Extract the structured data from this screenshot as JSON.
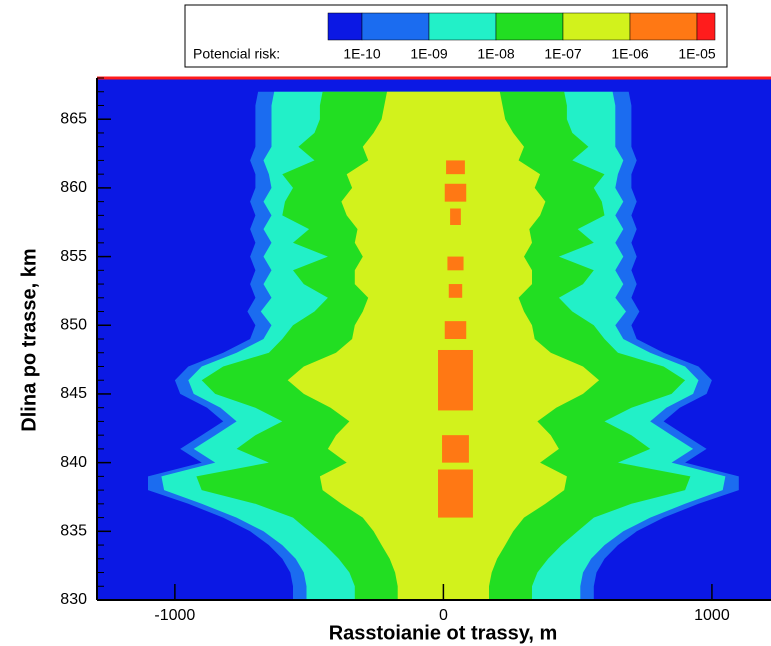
{
  "chart_data": {
    "type": "contour",
    "legend_title": "Potencial risk:",
    "levels": [
      {
        "value": 1e-10,
        "label": "1E-10"
      },
      {
        "value": 1e-09,
        "label": "1E-09"
      },
      {
        "value": 1e-08,
        "label": "1E-08"
      },
      {
        "value": 1e-07,
        "label": "1E-07"
      },
      {
        "value": 1e-06,
        "label": "1E-06"
      },
      {
        "value": 1e-05,
        "label": "1E-05"
      }
    ],
    "level_colors": [
      "#0b18e4",
      "#1b6cf0",
      "#22f0c8",
      "#22de22",
      "#d2f21c",
      "#ff7814",
      "#ff1c1c"
    ],
    "xlabel": "Rasstoianie ot trassy, m",
    "ylabel": "Dlina po trasse, km",
    "xlim": [
      -1290,
      1220
    ],
    "ylim": [
      830,
      868
    ],
    "xticks": [
      -1000,
      0,
      1000
    ],
    "yticks": [
      830,
      835,
      840,
      845,
      850,
      855,
      860,
      865
    ],
    "yminor_step": 1,
    "y": [
      830,
      831,
      832,
      833,
      834,
      835,
      836,
      837,
      838,
      839,
      840,
      841,
      842,
      843,
      844,
      845,
      846,
      847,
      848,
      849,
      850,
      851,
      852,
      853,
      854,
      855,
      856,
      857,
      858,
      859,
      860,
      861,
      862,
      863,
      864,
      865,
      866,
      867
    ],
    "bands": [
      {
        "half_width": [
          560,
          560,
          570,
          600,
          650,
          720,
          820,
          950,
          1100,
          1100,
          900,
          980,
          900,
          820,
          880,
          980,
          1000,
          950,
          820,
          720,
          700,
          730,
          700,
          720,
          700,
          720,
          700,
          720,
          700,
          720,
          700,
          700,
          720,
          700,
          700,
          700,
          700,
          690
        ]
      },
      {
        "half_width": [
          510,
          510,
          520,
          550,
          600,
          670,
          770,
          900,
          1040,
          1050,
          850,
          930,
          850,
          770,
          830,
          930,
          950,
          900,
          770,
          670,
          640,
          680,
          640,
          670,
          640,
          670,
          640,
          670,
          640,
          670,
          640,
          650,
          670,
          640,
          640,
          640,
          640,
          630
        ]
      },
      {
        "half_width": [
          330,
          330,
          350,
          390,
          440,
          500,
          560,
          700,
          900,
          920,
          650,
          770,
          700,
          600,
          700,
          850,
          900,
          820,
          650,
          600,
          560,
          480,
          430,
          520,
          560,
          430,
          560,
          500,
          600,
          590,
          560,
          600,
          480,
          540,
          480,
          460,
          460,
          450
        ]
      },
      {
        "half_width": [
          170,
          170,
          180,
          200,
          230,
          260,
          300,
          380,
          450,
          460,
          360,
          430,
          400,
          350,
          420,
          520,
          580,
          520,
          400,
          340,
          330,
          300,
          280,
          330,
          330,
          300,
          330,
          320,
          360,
          380,
          340,
          360,
          280,
          300,
          260,
          230,
          220,
          210
        ]
      }
    ],
    "hotspots": {
      "x": [
        45,
        45,
        45,
        45,
        45,
        45,
        45,
        45,
        45
      ],
      "y_from": [
        861,
        859,
        857.3,
        854,
        852,
        849,
        843.8,
        840,
        836
      ],
      "y_to": [
        862,
        860.3,
        858.5,
        855,
        853,
        850.3,
        848.2,
        842,
        839.5
      ],
      "half_width": [
        35,
        40,
        20,
        30,
        25,
        40,
        65,
        50,
        65
      ]
    }
  }
}
